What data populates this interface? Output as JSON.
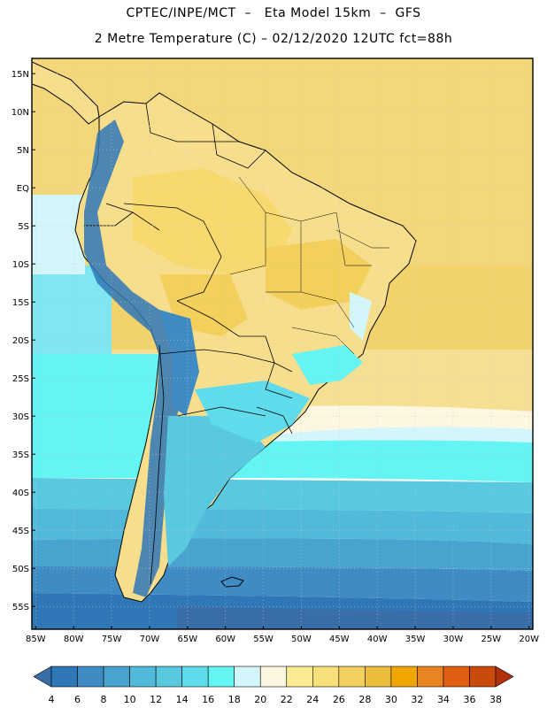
{
  "header": {
    "line1": "CPTEC/INPE/MCT  –   Eta Model 15km  –  GFS",
    "line2": "2 Metre Temperature (C) – 02/12/2020 12UTC fct=88h"
  },
  "map": {
    "lat_labels": [
      "15N",
      "10N",
      "5N",
      "EQ",
      "5S",
      "10S",
      "15S",
      "20S",
      "25S",
      "30S",
      "35S",
      "40S",
      "45S",
      "50S",
      "55S"
    ],
    "lat_values": [
      15,
      10,
      5,
      0,
      -5,
      -10,
      -15,
      -20,
      -25,
      -30,
      -35,
      -40,
      -45,
      -50,
      -55
    ],
    "lon_labels": [
      "85W",
      "80W",
      "75W",
      "70W",
      "65W",
      "60W",
      "55W",
      "50W",
      "45W",
      "40W",
      "35W",
      "30W",
      "25W",
      "20W"
    ],
    "lon_values": [
      -85,
      -80,
      -75,
      -70,
      -65,
      -60,
      -55,
      -50,
      -45,
      -40,
      -35,
      -30,
      -25,
      -20
    ],
    "extent": {
      "lon_min": -85.5,
      "lon_max": -19.5,
      "lat_min": -58,
      "lat_max": 17
    }
  },
  "colorbar": {
    "labels": [
      "4",
      "6",
      "8",
      "10",
      "12",
      "14",
      "16",
      "18",
      "20",
      "22",
      "24",
      "26",
      "28",
      "30",
      "32",
      "34",
      "36",
      "38"
    ],
    "colors": [
      "#3a6ea8",
      "#2f77b6",
      "#3f8cc4",
      "#48a3cf",
      "#51b9d9",
      "#59c9e0",
      "#5fdcec",
      "#64f4f4",
      "#d3f6fb",
      "#fdf6e0",
      "#fbeb92",
      "#f7df79",
      "#f2d05f",
      "#ecbd3c",
      "#f0a500",
      "#e98423",
      "#df6012",
      "#c94a0b",
      "#b1320a"
    ]
  }
}
